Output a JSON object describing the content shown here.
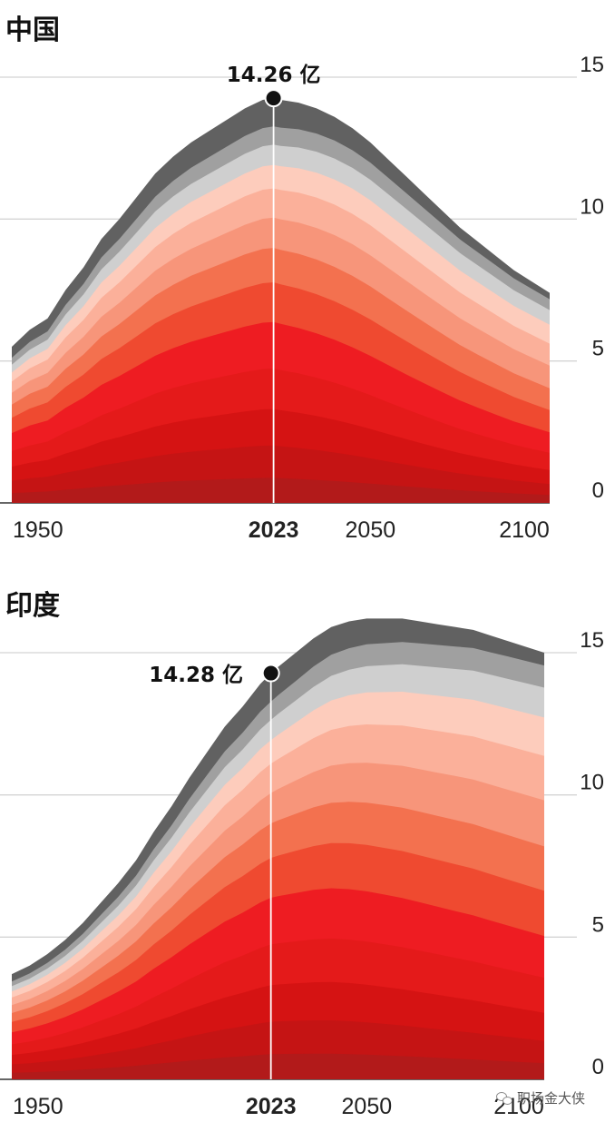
{
  "chart_data": [
    {
      "type": "area",
      "stacked": true,
      "title": "中国",
      "x_ticks": [
        "1950",
        "2023",
        "2050",
        "2100"
      ],
      "highlight_x_tick": "2023",
      "y_ticks": [
        "0",
        "5",
        "10",
        "15"
      ],
      "xlim": [
        1950,
        2100
      ],
      "ylim": [
        0,
        15
      ],
      "annotation": {
        "x": 2023,
        "y": 14.26,
        "label": "14.26 亿"
      },
      "layer_colors": [
        "#b21a1a",
        "#c51414",
        "#d51313",
        "#e41a1a",
        "#ee1c22",
        "#ef4a30",
        "#f3714f",
        "#f7957a",
        "#fbb09a",
        "#fdccbc",
        "#cfcfcf",
        "#a0a0a0",
        "#616161"
      ],
      "x": [
        1950,
        1955,
        1960,
        1965,
        1970,
        1975,
        1980,
        1985,
        1990,
        1995,
        2000,
        2005,
        2010,
        2015,
        2020,
        2023,
        2025,
        2030,
        2035,
        2040,
        2045,
        2050,
        2055,
        2060,
        2065,
        2070,
        2075,
        2080,
        2085,
        2090,
        2095,
        2100
      ],
      "total": [
        5.5,
        6.1,
        6.5,
        7.5,
        8.3,
        9.3,
        10.0,
        10.8,
        11.6,
        12.2,
        12.7,
        13.1,
        13.5,
        13.9,
        14.2,
        14.26,
        14.2,
        14.1,
        13.9,
        13.6,
        13.2,
        12.7,
        12.1,
        11.5,
        10.9,
        10.3,
        9.7,
        9.2,
        8.7,
        8.2,
        7.8,
        7.4
      ]
    },
    {
      "type": "area",
      "stacked": true,
      "title": "印度",
      "x_ticks": [
        "1950",
        "2023",
        "2050",
        "2100"
      ],
      "highlight_x_tick": "2023",
      "y_ticks": [
        "0",
        "5",
        "10",
        "15"
      ],
      "xlim": [
        1950,
        2100
      ],
      "ylim": [
        0,
        15
      ],
      "annotation": {
        "x": 2023,
        "y": 14.28,
        "label": "14.28 亿"
      },
      "layer_colors": [
        "#b21a1a",
        "#c51414",
        "#d51313",
        "#e41a1a",
        "#ee1c22",
        "#ef4a30",
        "#f3714f",
        "#f7957a",
        "#fbb09a",
        "#fdccbc",
        "#cfcfcf",
        "#a0a0a0",
        "#616161"
      ],
      "x": [
        1950,
        1955,
        1960,
        1965,
        1970,
        1975,
        1980,
        1985,
        1990,
        1995,
        2000,
        2005,
        2010,
        2015,
        2020,
        2023,
        2025,
        2030,
        2035,
        2040,
        2045,
        2050,
        2055,
        2060,
        2065,
        2070,
        2075,
        2080,
        2085,
        2090,
        2095,
        2100
      ],
      "total": [
        3.7,
        4.0,
        4.4,
        4.9,
        5.5,
        6.2,
        6.9,
        7.7,
        8.7,
        9.6,
        10.6,
        11.5,
        12.4,
        13.1,
        13.9,
        14.28,
        14.5,
        15.0,
        15.5,
        15.9,
        16.1,
        16.2,
        16.2,
        16.2,
        16.1,
        16.0,
        15.9,
        15.8,
        15.6,
        15.4,
        15.2,
        15.0
      ]
    }
  ],
  "watermark": {
    "icon": "wechat-icon",
    "text": "职场金大侠"
  }
}
